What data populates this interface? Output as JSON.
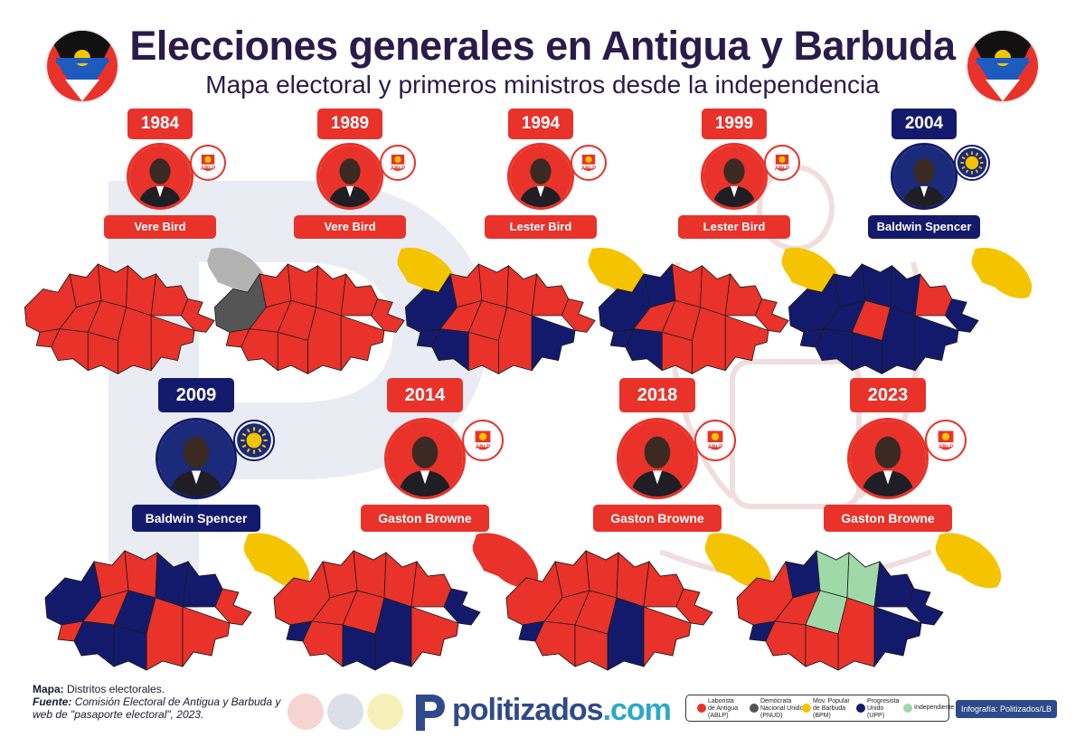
{
  "header": {
    "title": "Elecciones generales en Antigua y Barbuda",
    "subtitle": "Mapa electoral y primeros ministros desde la independencia"
  },
  "colors": {
    "ablp": "#e8322a",
    "upp": "#141a6b",
    "bpm": "#f5c400",
    "pnud": "#555555",
    "independent": "#9fd9a8",
    "no_data": "#b3b3b3"
  },
  "elections": [
    {
      "year": "1984",
      "pm": "Vere Bird",
      "party": "ABLP",
      "badge": "ABLP",
      "barbuda": "no_data"
    },
    {
      "year": "1989",
      "pm": "Vere Bird",
      "party": "ABLP",
      "badge": "ABLP",
      "barbuda": "bpm"
    },
    {
      "year": "1994",
      "pm": "Lester Bird",
      "party": "ABLP",
      "badge": "ABLP",
      "barbuda": "bpm"
    },
    {
      "year": "1999",
      "pm": "Lester Bird",
      "party": "ABLP",
      "badge": "ABLP",
      "barbuda": "bpm"
    },
    {
      "year": "2004",
      "pm": "Baldwin Spencer",
      "party": "UPP",
      "badge": "",
      "barbuda": "bpm"
    },
    {
      "year": "2009",
      "pm": "Baldwin Spencer",
      "party": "UPP",
      "badge": "",
      "barbuda": "bpm"
    },
    {
      "year": "2014",
      "pm": "Gaston Browne",
      "party": "ABLP",
      "badge": "ABLP",
      "barbuda": "ablp"
    },
    {
      "year": "2018",
      "pm": "Gaston Browne",
      "party": "ABLP",
      "badge": "ABLP",
      "barbuda": "bpm"
    },
    {
      "year": "2023",
      "pm": "Gaston Browne",
      "party": "ABLP",
      "badge": "ABLP",
      "barbuda": "bpm"
    }
  ],
  "footer": {
    "map_label": "Mapa:",
    "map_text": "Distritos electorales.",
    "source_label": "Fuente:",
    "source_text_1": "Comisión Electoral de Antigua y Barbuda y",
    "source_text_2": "web de \"pasaporte electoral\", 2023.",
    "brand_name": "politizados",
    "brand_tld": ".com",
    "credit": "Infografía: Politizados/LB"
  },
  "legend": [
    {
      "line1": "Laborista",
      "line2": "de Antigua",
      "line3": "(ABLP)",
      "color": "#e8322a"
    },
    {
      "line1": "Demócrata",
      "line2": "Nacional Unido",
      "line3": "(PNUD)",
      "color": "#555555"
    },
    {
      "line1": "Mov. Popular",
      "line2": "de Barbuda",
      "line3": "(BPM)",
      "color": "#f5c400"
    },
    {
      "line1": "Progresista",
      "line2": "Unido",
      "line3": "(UPP)",
      "color": "#141a6b"
    },
    {
      "line1": "Independiente",
      "line2": "",
      "line3": "",
      "color": "#9fd9a8"
    }
  ]
}
